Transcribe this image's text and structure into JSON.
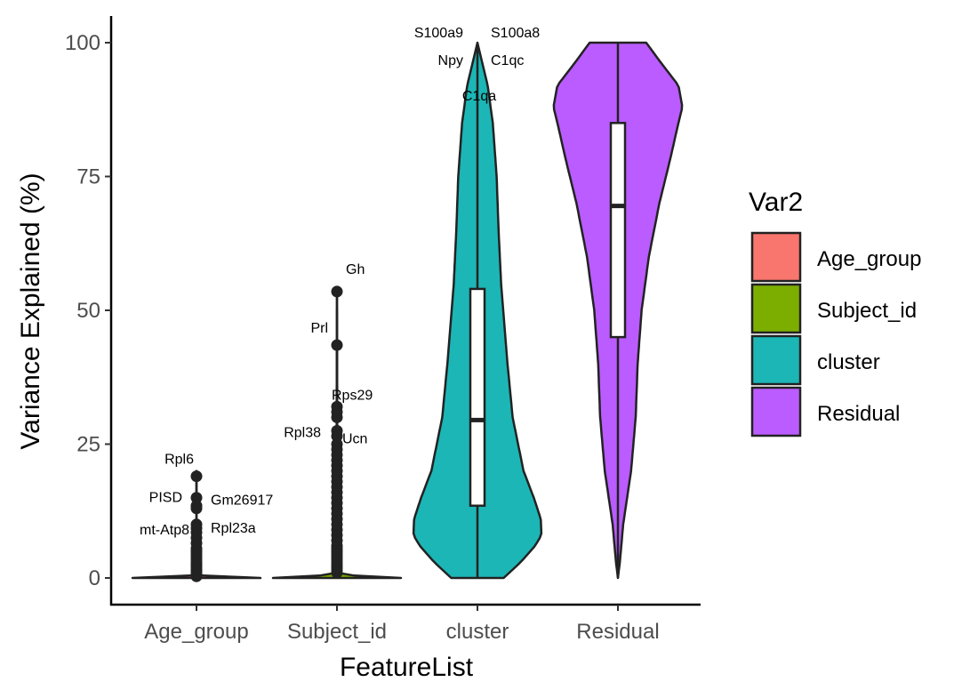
{
  "chart_data": {
    "type": "violin",
    "xlabel": "FeatureList",
    "ylabel": "Variance Explained (%)",
    "ylim": [
      0,
      100
    ],
    "yticks": [
      0,
      25,
      50,
      75,
      100
    ],
    "categories": [
      "Age_group",
      "Subject_id",
      "cluster",
      "Residual"
    ],
    "legend": {
      "title": "Var2",
      "entries": [
        {
          "label": "Age_group",
          "color": "#F8766D"
        },
        {
          "label": "Subject_id",
          "color": "#7CAE00"
        },
        {
          "label": "cluster",
          "color": "#1CB6B6"
        },
        {
          "label": "Residual",
          "color": "#BA5CFF"
        }
      ]
    },
    "series": [
      {
        "name": "Age_group",
        "color": "#F8766D",
        "violin_profile": [
          [
            0,
            1.0
          ],
          [
            0.5,
            0.02
          ],
          [
            1,
            0.0
          ],
          [
            20,
            0.0
          ]
        ],
        "box": {
          "q1": 0,
          "median": 0,
          "q3": 0
        },
        "outliers": [
          19,
          15,
          13.5,
          13,
          10,
          9.3,
          8.5,
          7.5,
          6.5,
          5.5,
          5,
          4.5,
          4,
          3.5,
          3,
          2.6,
          2.2,
          1.8,
          1.4,
          1.0,
          0.6,
          0.3
        ],
        "labeled_points": [
          {
            "gene": "Rpl6",
            "value": 19
          },
          {
            "gene": "PISD",
            "value": 15
          },
          {
            "gene": "Gm26917",
            "value": 14
          },
          {
            "gene": "mt-Atp8",
            "value": 9.5
          },
          {
            "gene": "Rpl23a",
            "value": 9.5
          }
        ]
      },
      {
        "name": "Subject_id",
        "color": "#7CAE00",
        "violin_profile": [
          [
            0,
            1.0
          ],
          [
            0.4,
            0.3
          ],
          [
            0.8,
            0.05
          ],
          [
            2,
            0.01
          ],
          [
            54,
            0.0
          ]
        ],
        "box": {
          "q1": 0,
          "median": 0,
          "q3": 0
        },
        "outliers": [
          53.5,
          43.5,
          32,
          31,
          30,
          27.5,
          26.5,
          25,
          24,
          23,
          22,
          21,
          20,
          19,
          18,
          17,
          16,
          15,
          14,
          13,
          12,
          11,
          10,
          9,
          8,
          7,
          6,
          5.5,
          5,
          4.5,
          4,
          3.5,
          3,
          2.5,
          2,
          1.5,
          1.0
        ],
        "labeled_points": [
          {
            "gene": "Gh",
            "value": 53.5
          },
          {
            "gene": "Prl",
            "value": 43.5
          },
          {
            "gene": "Rps29",
            "value": 31.5
          },
          {
            "gene": "Rpl38",
            "value": 28
          },
          {
            "gene": "Ucn",
            "value": 26.5
          }
        ]
      },
      {
        "name": "cluster",
        "color": "#1CB6B6",
        "violin_profile": [
          [
            0,
            0.41
          ],
          [
            3,
            0.68
          ],
          [
            6,
            0.9
          ],
          [
            8,
            1.0
          ],
          [
            11,
            0.99
          ],
          [
            15,
            0.88
          ],
          [
            20,
            0.72
          ],
          [
            30,
            0.55
          ],
          [
            40,
            0.47
          ],
          [
            55,
            0.37
          ],
          [
            65,
            0.33
          ],
          [
            75,
            0.3
          ],
          [
            85,
            0.24
          ],
          [
            92,
            0.16
          ],
          [
            97,
            0.06
          ],
          [
            100,
            0.0
          ]
        ],
        "box": {
          "q1": 13.5,
          "median": 29.5,
          "q3": 54
        },
        "outliers": [],
        "labeled_points": [
          {
            "gene": "S100a9",
            "value": 100
          },
          {
            "gene": "S100a8",
            "value": 100
          },
          {
            "gene": "Npy",
            "value": 96
          },
          {
            "gene": "C1qc",
            "value": 96
          },
          {
            "gene": "C1qa",
            "value": 89.5
          }
        ]
      },
      {
        "name": "Residual",
        "color": "#BA5CFF",
        "violin_profile": [
          [
            0,
            0.0
          ],
          [
            3,
            0.03
          ],
          [
            10,
            0.08
          ],
          [
            20,
            0.2
          ],
          [
            30,
            0.27
          ],
          [
            40,
            0.3
          ],
          [
            50,
            0.36
          ],
          [
            60,
            0.47
          ],
          [
            70,
            0.63
          ],
          [
            78,
            0.79
          ],
          [
            85,
            0.92
          ],
          [
            88,
            0.98
          ],
          [
            92,
            0.92
          ],
          [
            96,
            0.67
          ],
          [
            100,
            0.43
          ]
        ],
        "box": {
          "q1": 45,
          "median": 69.5,
          "q3": 85
        },
        "outliers": [],
        "labeled_points": []
      }
    ]
  }
}
